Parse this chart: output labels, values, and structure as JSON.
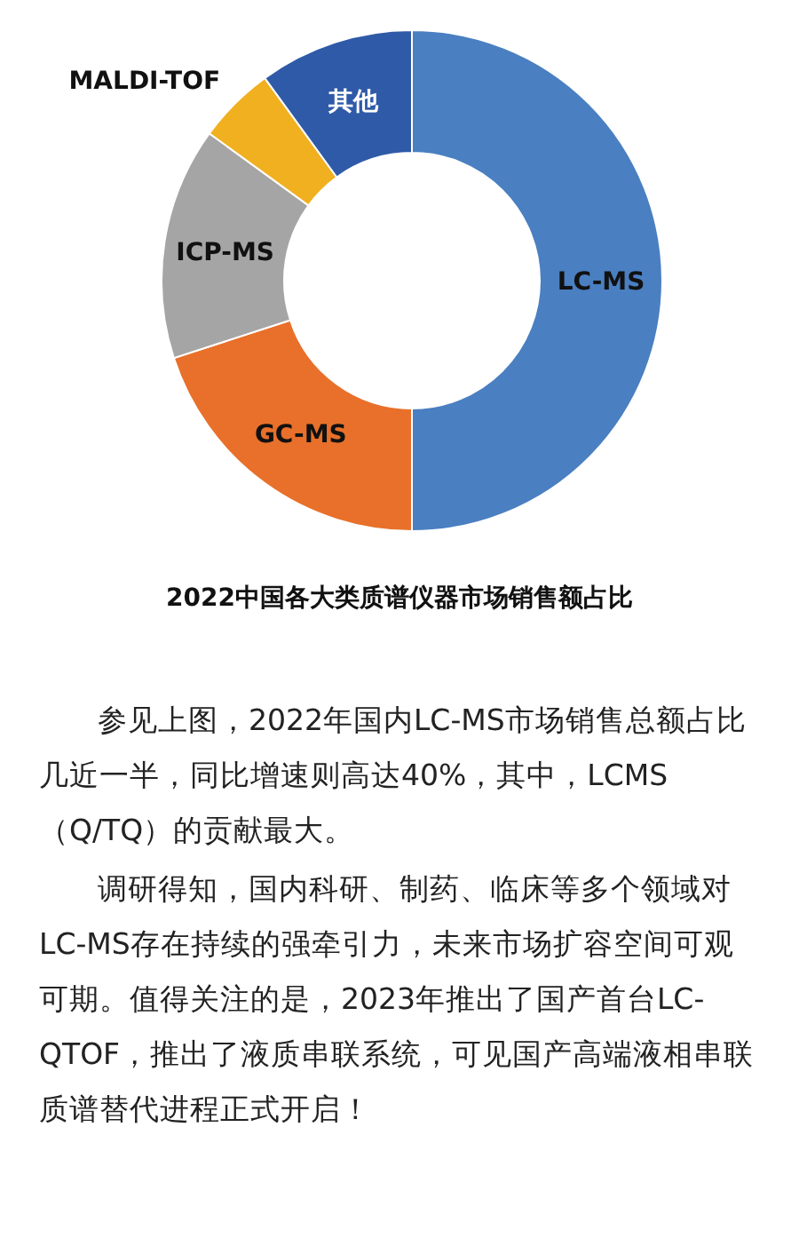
{
  "chart_data": {
    "type": "donut",
    "title": "2022中国各大类质谱仪器市场销售额占比",
    "categories": [
      "LC-MS",
      "GC-MS",
      "ICP-MS",
      "MALDI-TOF",
      "其他"
    ],
    "values": [
      50,
      20,
      15,
      5,
      10
    ],
    "colors": [
      "#4a7fc1",
      "#e8702a",
      "#a5a5a5",
      "#f0b020",
      "#2f5aa8"
    ],
    "annotations": [
      "参见上图，2022年国内LC-MS市场销售总额占比几近一半，同比增速则高达40%，其中，LCMS（Q/TQ）的贡献最大。",
      "调研得知，国内科研、制药、临床等多个领域对LC-MS存在持续的强牵引力，未来市场扩容空间可观可期。值得关注的是，2023年推出了国产首台LC-QTOF，推出了液质串联系统，可见国产高端液相串联质谱替代进程正式开启！"
    ]
  }
}
